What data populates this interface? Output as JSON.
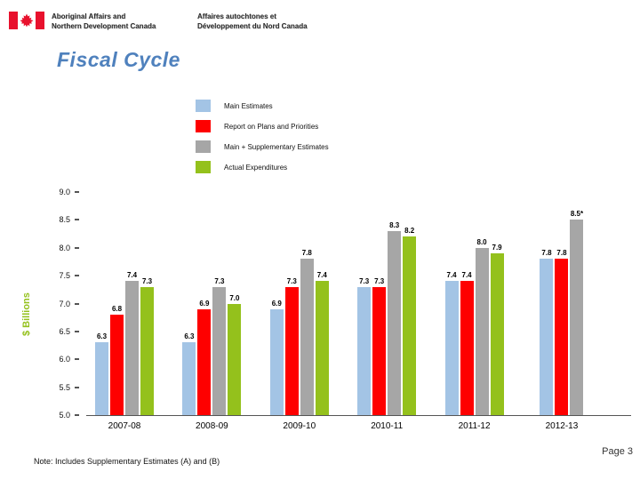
{
  "header": {
    "org_en_line1": "Aboriginal Affairs and",
    "org_en_line2": "Northern Development Canada",
    "org_fr_line1": "Affaires autochtones et",
    "org_fr_line2": "Développement du Nord Canada"
  },
  "title": "Fiscal Cycle",
  "legend": [
    {
      "label": "Main Estimates",
      "color": "#A3C4E5"
    },
    {
      "label": "Report on Plans and Priorities",
      "color": "#FE0000"
    },
    {
      "label": "Main + Supplementary Estimates",
      "color": "#A6A6A6"
    },
    {
      "label": "Actual Expenditures",
      "color": "#94C11C"
    }
  ],
  "chart_data": {
    "type": "bar",
    "categories": [
      "2007-08",
      "2008-09",
      "2009-10",
      "2010-11",
      "2011-12",
      "2012-13"
    ],
    "series": [
      {
        "name": "Main Estimates",
        "color": "#A3C4E5",
        "values": [
          6.3,
          6.3,
          6.9,
          7.3,
          7.4,
          7.8
        ],
        "labels": [
          "6.3",
          "6.3",
          "6.9",
          "7.3",
          "7.4",
          "7.8"
        ]
      },
      {
        "name": "Report on Plans and Priorities",
        "color": "#FE0000",
        "values": [
          6.8,
          6.9,
          7.3,
          7.3,
          7.4,
          7.8
        ],
        "labels": [
          "6.8",
          "6.9",
          "7.3",
          "7.3",
          "7.4",
          "7.8"
        ]
      },
      {
        "name": "Main + Supplementary Estimates",
        "color": "#A6A6A6",
        "values": [
          7.4,
          7.3,
          7.8,
          8.3,
          8.0,
          8.5
        ],
        "labels": [
          "7.4",
          "7.3",
          "7.8",
          "8.3",
          "8.0",
          "8.5*"
        ]
      },
      {
        "name": "Actual Expenditures",
        "color": "#94C11C",
        "values": [
          7.3,
          7.0,
          7.4,
          8.2,
          7.9,
          null
        ],
        "labels": [
          "7.3",
          "7.0",
          "7.4",
          "8.2",
          "7.9",
          null
        ]
      }
    ],
    "ylabel": "$ Billions",
    "ylim": [
      5.0,
      9.0
    ],
    "yticks": [
      5.0,
      5.5,
      6.0,
      6.5,
      7.0,
      7.5,
      8.0,
      8.5,
      9.0
    ],
    "grid": false,
    "legend_position": "top"
  },
  "note": "Note: Includes Supplementary Estimates (A) and (B)",
  "page": "Page 3",
  "colors": {
    "title": "#4F81BD",
    "flag_red": "#E8112D",
    "axis": "#555555"
  }
}
